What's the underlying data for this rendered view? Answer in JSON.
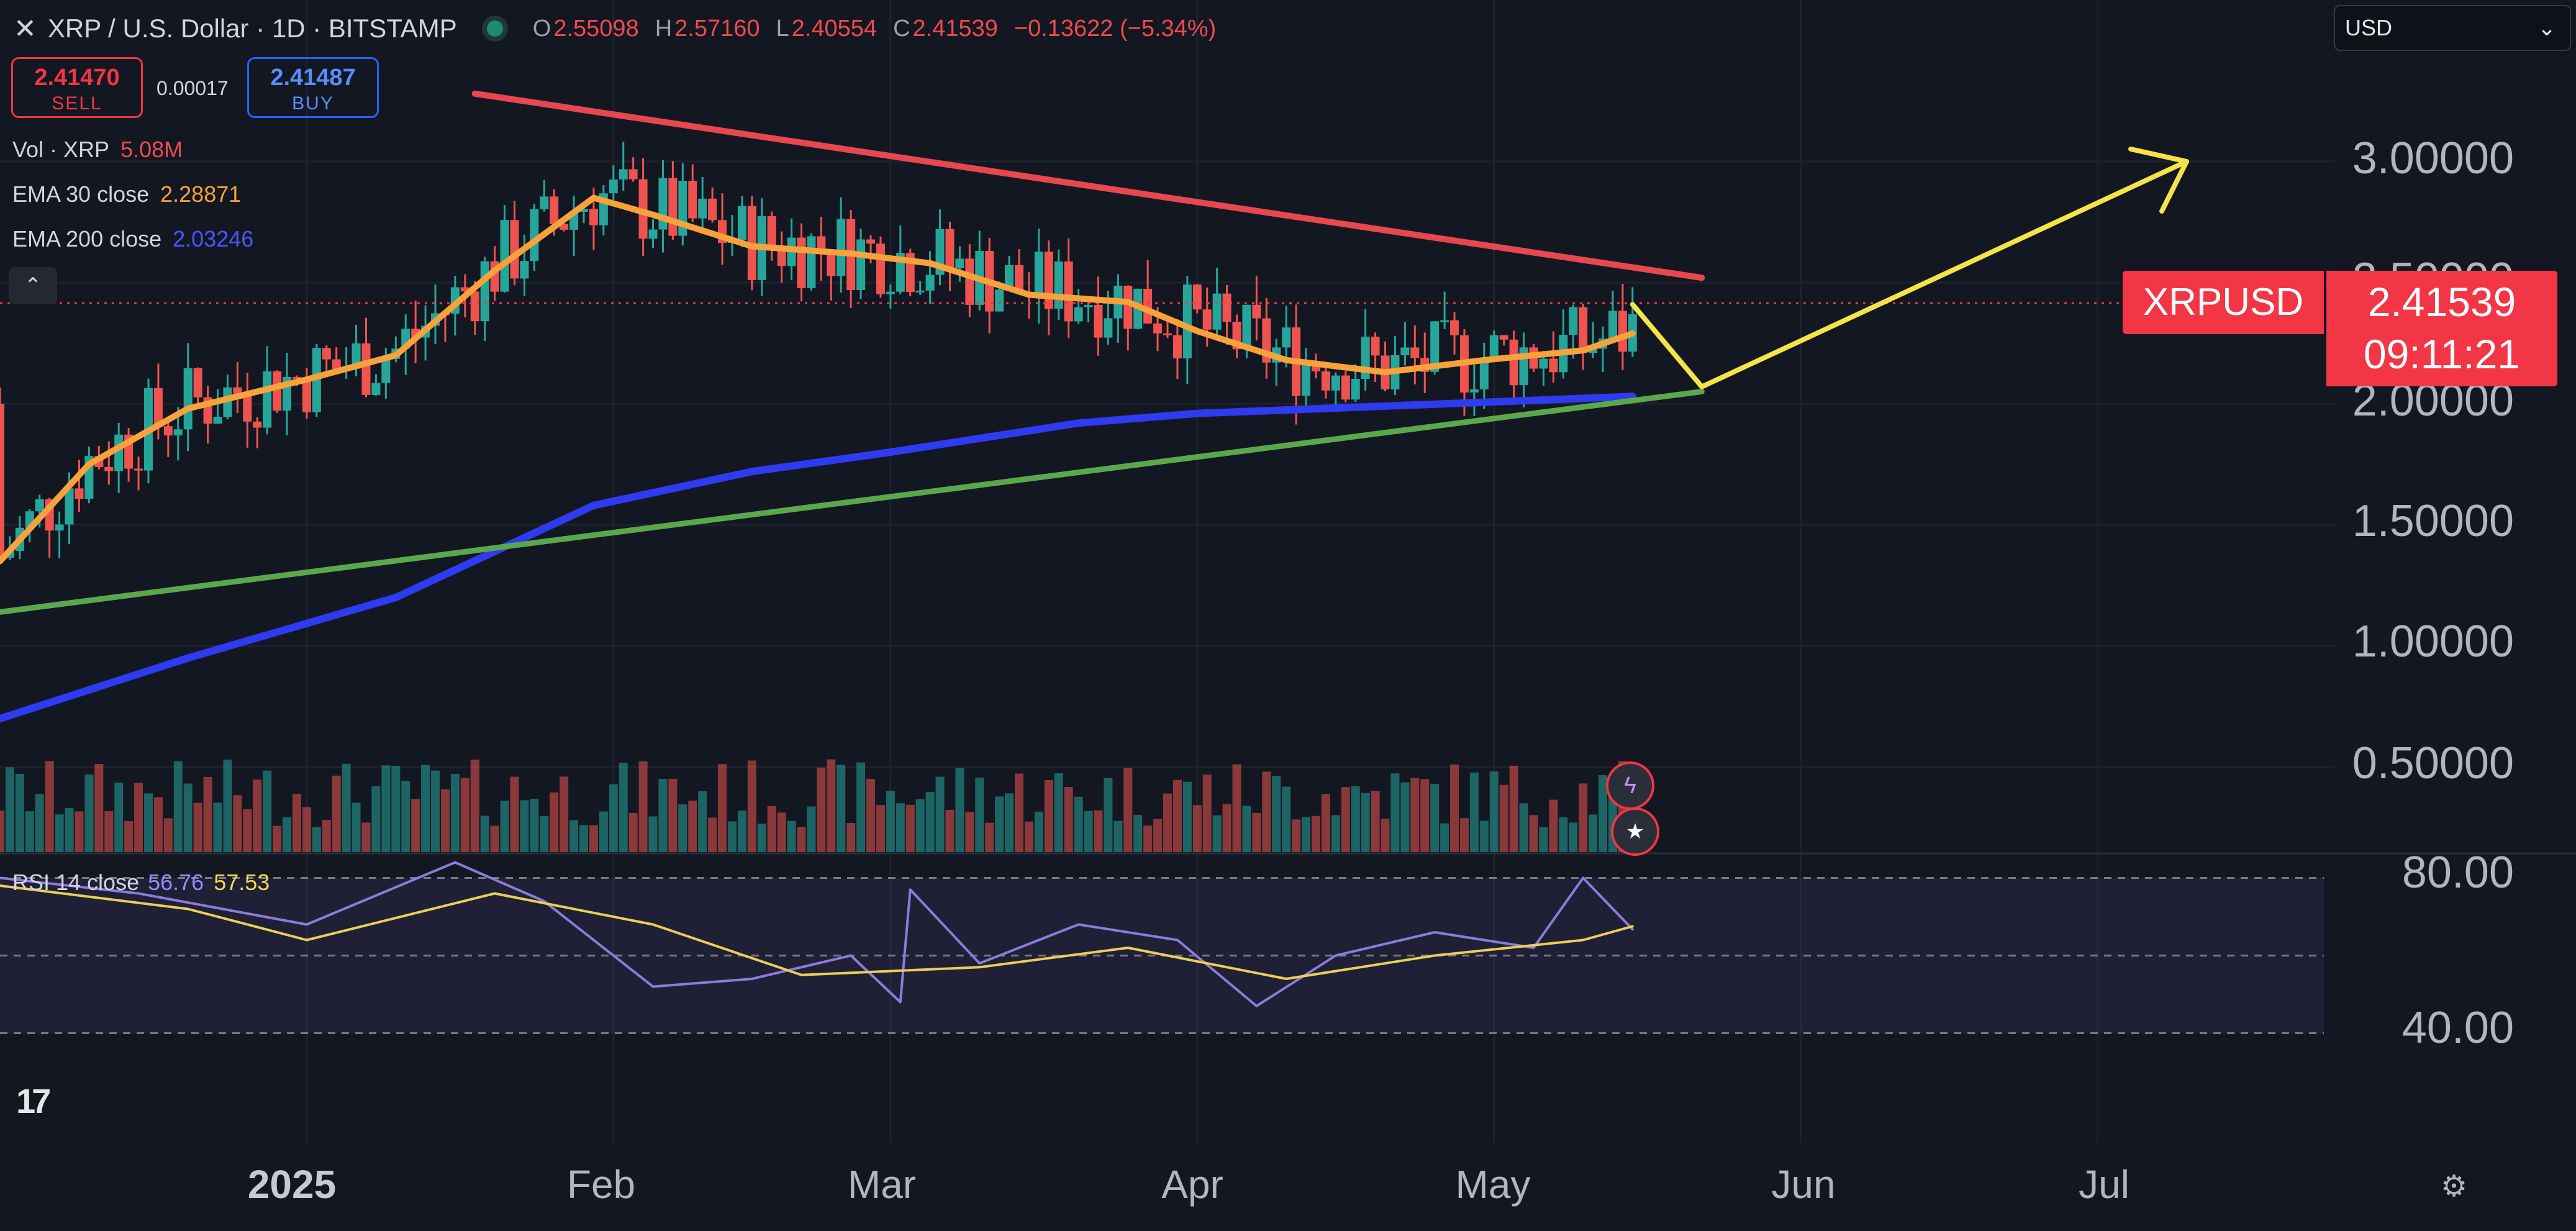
{
  "header": {
    "symbol": "XRP / U.S. Dollar · 1D · BITSTAMP",
    "open_k": "O",
    "open": "2.55098",
    "high_k": "H",
    "high": "2.57160",
    "low_k": "L",
    "low": "2.40554",
    "close_k": "C",
    "close": "2.41539",
    "change": "−0.13622 (−5.34%)"
  },
  "currency_select": {
    "value": "USD"
  },
  "trade": {
    "sell_price": "2.41470",
    "sell_label": "SELL",
    "spread": "0.00017",
    "buy_price": "2.41487",
    "buy_label": "BUY"
  },
  "indicators": {
    "vol_label": "Vol · XRP",
    "vol_value": "5.08M",
    "ema30_label": "EMA 30 close",
    "ema30_value": "2.28871",
    "ema200_label": "EMA 200 close",
    "ema200_value": "2.03246",
    "rsi_label": "RSI 14 close",
    "rsi_value": "56.76",
    "rsi_ma_value": "57.53"
  },
  "price_tag": {
    "symbol": "XRPUSD",
    "price": "2.41539",
    "countdown": "09:11:21"
  },
  "y_axis_labels": [
    "3.00000",
    "2.50000",
    "2.00000",
    "1.50000",
    "1.00000",
    "0.50000"
  ],
  "rsi_axis_labels": [
    "80.00",
    "40.00"
  ],
  "x_axis_labels": [
    "2025",
    "Feb",
    "Mar",
    "Apr",
    "May",
    "Jun",
    "Jul"
  ],
  "colors": {
    "background": "#131722",
    "up": "#26a69a",
    "down": "#ef5350",
    "ema30": "#f7a23a",
    "ema200": "#2e3bf0",
    "resistance": "#e8474f",
    "support": "#5aa84e",
    "projection": "#f5e34a",
    "rsi": "#8c7bd9",
    "rsi_ma": "#e9cf58"
  },
  "icons": {
    "close": "close-icon",
    "settings": "settings-icon",
    "logo": "tradingview-logo",
    "events": [
      "lightning-event-icon",
      "us-flag-event-icon"
    ]
  },
  "chart_data": {
    "type": "candlestick",
    "price_range": [
      0.15,
      3.55
    ],
    "x_range": [
      "2024-12-01",
      "2025-07-25"
    ],
    "ema30": [
      [
        "2024-12-01",
        1.35
      ],
      [
        "2024-12-10",
        1.75
      ],
      [
        "2024-12-20",
        1.98
      ],
      [
        "2025-01-01",
        2.1
      ],
      [
        "2025-01-10",
        2.2
      ],
      [
        "2025-01-20",
        2.55
      ],
      [
        "2025-01-30",
        2.85
      ],
      [
        "2025-02-05",
        2.78
      ],
      [
        "2025-02-15",
        2.65
      ],
      [
        "2025-02-25",
        2.62
      ],
      [
        "2025-03-05",
        2.58
      ],
      [
        "2025-03-15",
        2.45
      ],
      [
        "2025-03-25",
        2.42
      ],
      [
        "2025-04-01",
        2.3
      ],
      [
        "2025-04-10",
        2.18
      ],
      [
        "2025-04-20",
        2.13
      ],
      [
        "2025-04-30",
        2.18
      ],
      [
        "2025-05-10",
        2.22
      ],
      [
        "2025-05-15",
        2.29
      ]
    ],
    "ema200": [
      [
        "2024-12-01",
        0.7
      ],
      [
        "2024-12-20",
        0.95
      ],
      [
        "2025-01-10",
        1.2
      ],
      [
        "2025-01-30",
        1.58
      ],
      [
        "2025-02-15",
        1.72
      ],
      [
        "2025-03-01",
        1.8
      ],
      [
        "2025-03-20",
        1.92
      ],
      [
        "2025-04-01",
        1.96
      ],
      [
        "2025-04-20",
        1.99
      ],
      [
        "2025-05-15",
        2.03
      ]
    ],
    "resistance_line": [
      [
        "2025-01-18",
        3.28
      ],
      [
        "2025-05-22",
        2.52
      ]
    ],
    "support_line": [
      [
        "2024-12-01",
        1.14
      ],
      [
        "2025-05-22",
        2.05
      ]
    ],
    "projection": [
      [
        "2025-05-15",
        2.41
      ],
      [
        "2025-05-22",
        2.07
      ],
      [
        "2025-07-10",
        3.0
      ]
    ],
    "rsi_range": [
      20,
      100
    ],
    "rsi": [
      [
        "2024-12-01",
        70
      ],
      [
        "2024-12-15",
        66
      ],
      [
        "2025-01-01",
        58
      ],
      [
        "2025-01-16",
        74
      ],
      [
        "2025-01-25",
        64
      ],
      [
        "2025-02-05",
        42
      ],
      [
        "2025-02-15",
        44
      ],
      [
        "2025-02-25",
        50
      ],
      [
        "2025-03-02",
        38
      ],
      [
        "2025-03-03",
        67
      ],
      [
        "2025-03-10",
        48
      ],
      [
        "2025-03-20",
        58
      ],
      [
        "2025-03-30",
        54
      ],
      [
        "2025-04-07",
        37
      ],
      [
        "2025-04-15",
        50
      ],
      [
        "2025-04-25",
        56
      ],
      [
        "2025-05-05",
        52
      ],
      [
        "2025-05-10",
        70
      ],
      [
        "2025-05-15",
        56.76
      ]
    ],
    "rsi_ma": [
      [
        "2024-12-01",
        68
      ],
      [
        "2024-12-20",
        62
      ],
      [
        "2025-01-01",
        54
      ],
      [
        "2025-01-20",
        66
      ],
      [
        "2025-02-05",
        58
      ],
      [
        "2025-02-20",
        45
      ],
      [
        "2025-03-10",
        47
      ],
      [
        "2025-03-25",
        52
      ],
      [
        "2025-04-10",
        44
      ],
      [
        "2025-04-25",
        50
      ],
      [
        "2025-05-10",
        54
      ],
      [
        "2025-05-15",
        57.53
      ]
    ]
  }
}
